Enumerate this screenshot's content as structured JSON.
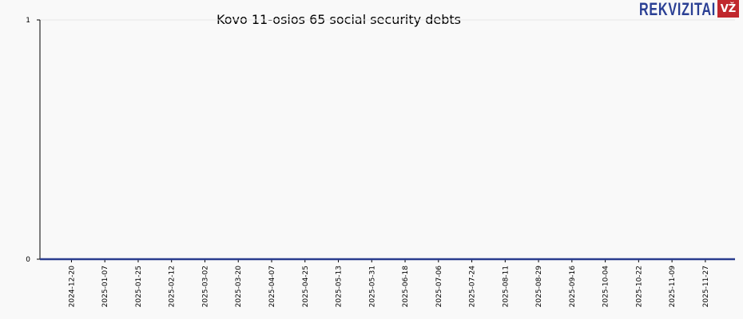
{
  "brand": {
    "name": "REKVIZITAI",
    "badge": "VŽ"
  },
  "chart_data": {
    "type": "line",
    "title": "Kovo 11-osios 65 social security debts",
    "x": [
      "2024-12-03",
      "2025-12-13"
    ],
    "series": [
      {
        "color": "#2a3d8f",
        "values": [
          0,
          0
        ]
      }
    ],
    "xlim": [
      "2024-12-03",
      "2025-12-13"
    ],
    "xticks": [
      "2024-12-20",
      "2025-01-07",
      "2025-01-25",
      "2025-02-12",
      "2025-03-02",
      "2025-03-20",
      "2025-04-07",
      "2025-04-25",
      "2025-05-13",
      "2025-05-31",
      "2025-06-18",
      "2025-07-06",
      "2025-07-24",
      "2025-08-11",
      "2025-08-29",
      "2025-09-16",
      "2025-10-04",
      "2025-10-22",
      "2025-11-09",
      "2025-11-27"
    ],
    "ylim": [
      0,
      1
    ],
    "yticks": [
      0,
      1
    ],
    "grid": true
  }
}
